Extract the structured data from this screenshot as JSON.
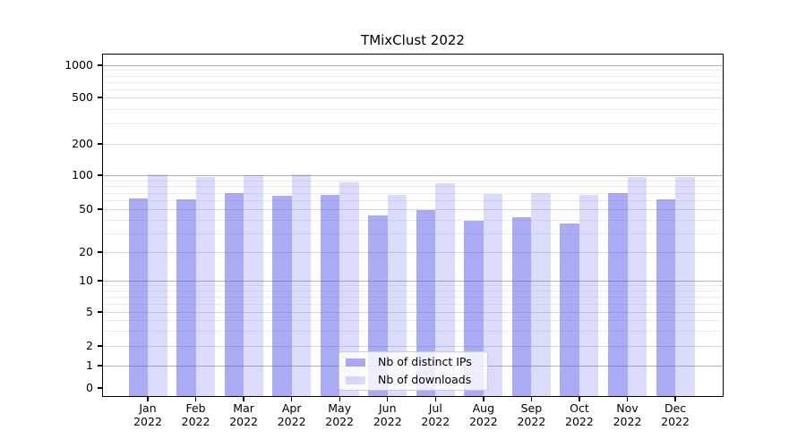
{
  "title": "TMixClust 2022",
  "chart_data": {
    "type": "bar",
    "title": "TMixClust 2022",
    "categories": [
      "Jan 2022",
      "Feb 2022",
      "Mar 2022",
      "Apr 2022",
      "May 2022",
      "Jun 2022",
      "Jul 2022",
      "Aug 2022",
      "Sep 2022",
      "Oct 2022",
      "Nov 2022",
      "Dec 2022"
    ],
    "series": [
      {
        "name": "Nb of distinct IPs",
        "color": "#5555eb",
        "alpha": 0.5,
        "rendered_color": "#aaaaf5",
        "values": [
          62,
          61,
          69,
          66,
          67,
          44,
          49,
          39,
          42,
          37,
          70,
          61
        ]
      },
      {
        "name": "Nb of downloads",
        "color": "#5555eb",
        "alpha": 0.21,
        "rendered_color": "#dbdbf9",
        "values": [
          103,
          97,
          100,
          101,
          86,
          67,
          85,
          68,
          70,
          67,
          96,
          96
        ]
      }
    ],
    "yticks": [
      0,
      1,
      2,
      5,
      10,
      20,
      50,
      100,
      200,
      500,
      1000
    ],
    "xlabel": "",
    "ylabel": "",
    "yscale": "symlog-like (logarithmic above 1, linear 0-1)",
    "ylim": [
      0,
      1250
    ],
    "grid": "on (major + minor horizontal lines)",
    "legend_position": "lower center inside plot"
  }
}
